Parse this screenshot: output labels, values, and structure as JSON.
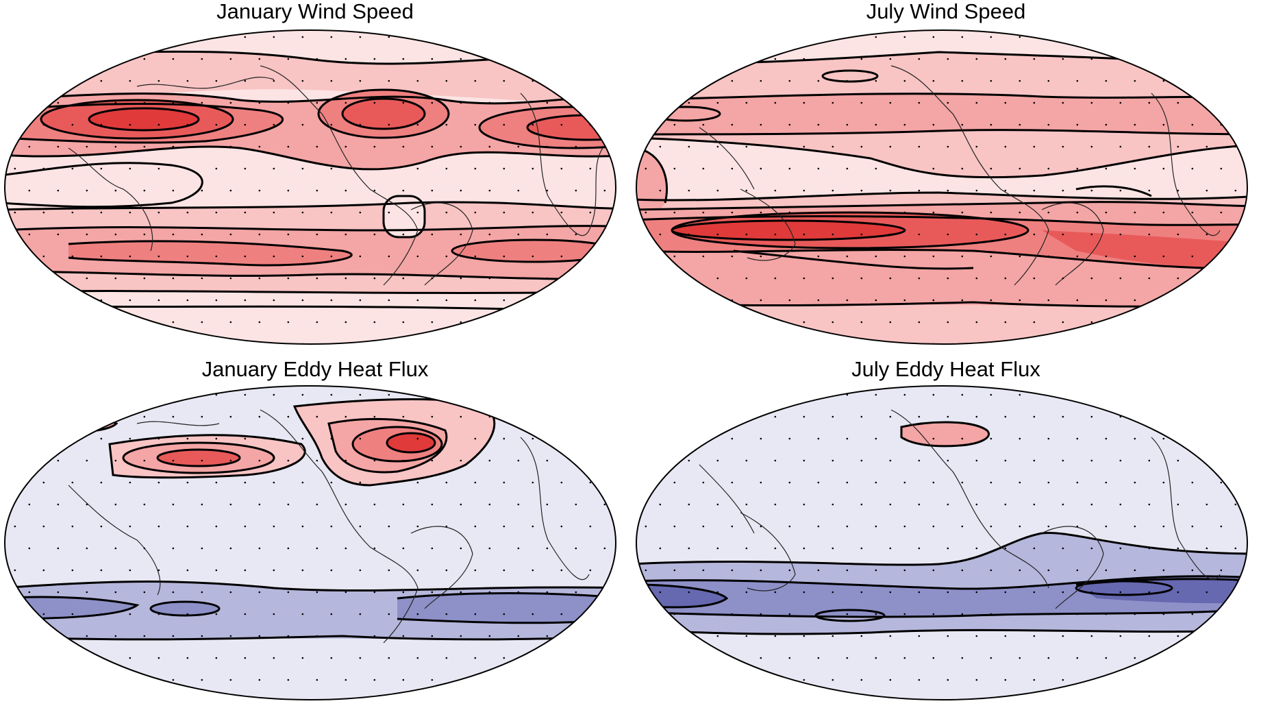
{
  "panels": [
    {
      "id": "jan-wind",
      "title": "January Wind Speed",
      "scheme": "red"
    },
    {
      "id": "jul-wind",
      "title": "July Wind Speed",
      "scheme": "red"
    },
    {
      "id": "jan-eddy",
      "title": "January Eddy Heat Flux",
      "scheme": "mixed"
    },
    {
      "id": "jul-eddy",
      "title": "July Eddy Heat Flux",
      "scheme": "mixed"
    }
  ],
  "colors": {
    "red_1": "#fde4e4",
    "red_2": "#f8c4c4",
    "red_3": "#f4a5a5",
    "red_4": "#ef8080",
    "red_5": "#e85a5a",
    "red_6": "#e03a3a",
    "neutral": "#e8e8f4",
    "blue_1": "#b6b7dc",
    "blue_2": "#8e90c8",
    "blue_3": "#6668b0",
    "contour": "#000000",
    "coast": "#222222"
  }
}
